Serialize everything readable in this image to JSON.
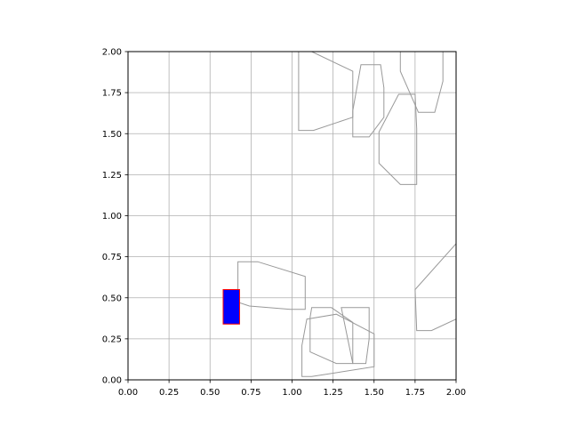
{
  "chart_data": {
    "type": "scatter",
    "title": "",
    "xlabel": "",
    "ylabel": "",
    "xlim": [
      0,
      2
    ],
    "ylim": [
      0,
      2
    ],
    "grid": true,
    "x_ticks": [
      "0.00",
      "0.25",
      "0.50",
      "0.75",
      "1.00",
      "1.25",
      "1.50",
      "1.75",
      "2.00"
    ],
    "y_ticks": [
      "0.00",
      "0.25",
      "0.50",
      "0.75",
      "1.00",
      "1.25",
      "1.50",
      "1.75",
      "2.00"
    ],
    "x_tick_values": [
      0,
      0.25,
      0.5,
      0.75,
      1.0,
      1.25,
      1.5,
      1.75,
      2.0
    ],
    "y_tick_values": [
      0,
      0.25,
      0.5,
      0.75,
      1.0,
      1.25,
      1.5,
      1.75,
      2.0
    ],
    "polygons": [
      {
        "points": [
          [
            0.67,
            0.72
          ],
          [
            0.79,
            0.72
          ],
          [
            1.08,
            0.63
          ],
          [
            1.08,
            0.43
          ],
          [
            0.99,
            0.43
          ],
          [
            0.74,
            0.45
          ],
          [
            0.68,
            0.47
          ],
          [
            0.67,
            0.49
          ],
          [
            0.67,
            0.67
          ]
        ]
      },
      {
        "points": [
          [
            1.04,
            2.0
          ],
          [
            1.12,
            2.0
          ],
          [
            1.37,
            1.88
          ],
          [
            1.37,
            1.6
          ],
          [
            1.13,
            1.52
          ],
          [
            1.04,
            1.52
          ]
        ]
      },
      {
        "points": [
          [
            1.42,
            1.92
          ],
          [
            1.54,
            1.92
          ],
          [
            1.56,
            1.78
          ],
          [
            1.56,
            1.6
          ],
          [
            1.47,
            1.48
          ],
          [
            1.37,
            1.48
          ],
          [
            1.37,
            1.64
          ]
        ]
      },
      {
        "points": [
          [
            1.66,
            2.0
          ],
          [
            1.92,
            2.0
          ],
          [
            1.92,
            1.82
          ],
          [
            1.87,
            1.63
          ],
          [
            1.77,
            1.63
          ],
          [
            1.66,
            1.88
          ]
        ]
      },
      {
        "points": [
          [
            1.65,
            1.74
          ],
          [
            1.75,
            1.74
          ],
          [
            1.76,
            1.53
          ],
          [
            1.76,
            1.19
          ],
          [
            1.66,
            1.19
          ],
          [
            1.53,
            1.32
          ],
          [
            1.53,
            1.51
          ]
        ]
      },
      {
        "points": [
          [
            1.12,
            0.44
          ],
          [
            1.24,
            0.44
          ],
          [
            1.37,
            0.35
          ],
          [
            1.37,
            0.1
          ],
          [
            1.27,
            0.1
          ],
          [
            1.11,
            0.17
          ],
          [
            1.11,
            0.38
          ]
        ]
      },
      {
        "points": [
          [
            1.3,
            0.44
          ],
          [
            1.47,
            0.44
          ],
          [
            1.47,
            0.25
          ],
          [
            1.45,
            0.1
          ],
          [
            1.37,
            0.1
          ]
        ]
      },
      {
        "points": [
          [
            1.09,
            0.37
          ],
          [
            1.27,
            0.4
          ],
          [
            1.5,
            0.28
          ],
          [
            1.5,
            0.08
          ],
          [
            1.12,
            0.02
          ],
          [
            1.06,
            0.02
          ],
          [
            1.06,
            0.21
          ]
        ]
      },
      {
        "points": [
          [
            1.75,
            0.55
          ],
          [
            2.0,
            0.83
          ],
          [
            2.0,
            0.37
          ],
          [
            1.85,
            0.3
          ],
          [
            1.76,
            0.3
          ]
        ]
      }
    ],
    "highlight": {
      "x": [
        0.58,
        0.68
      ],
      "y": [
        0.34,
        0.55
      ],
      "fill": "#0000ff",
      "edge": "#ff0000"
    },
    "colors": {
      "polygon_edge": "#999999",
      "grid": "#b0b0b0",
      "axis": "#000000"
    }
  }
}
